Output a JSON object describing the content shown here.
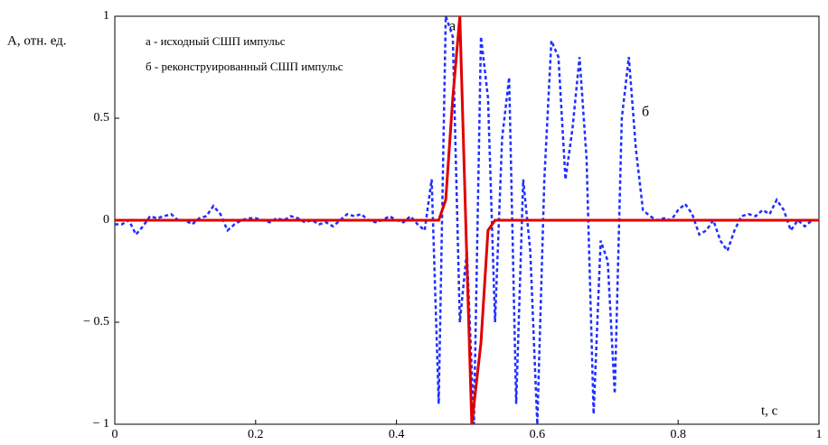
{
  "chart_data": {
    "type": "line",
    "ylabel": "A, отн. ед.",
    "xlabel": "t, c",
    "annotations": [
      "а - исходный СШП импульс",
      "б - реконструированный СШП импульс"
    ],
    "curve_labels": [
      "а",
      "б"
    ],
    "xlim": [
      0,
      1
    ],
    "ylim": [
      -1,
      1
    ],
    "xticks": [
      0,
      0.2,
      0.4,
      0.6,
      0.8,
      1
    ],
    "yticks": [
      {
        "value": -1,
        "label": "− 1"
      },
      {
        "value": -0.5,
        "label": "− 0.5"
      },
      0,
      0.5,
      1
    ],
    "grid": false,
    "series": [
      {
        "color": "#1f2fff",
        "style": "dotted",
        "x": [
          0,
          0.01,
          0.02,
          0.03,
          0.04,
          0.05,
          0.06,
          0.07,
          0.08,
          0.09,
          0.1,
          0.11,
          0.12,
          0.13,
          0.14,
          0.15,
          0.16,
          0.17,
          0.18,
          0.19,
          0.2,
          0.21,
          0.22,
          0.23,
          0.24,
          0.25,
          0.26,
          0.27,
          0.28,
          0.29,
          0.3,
          0.31,
          0.32,
          0.33,
          0.34,
          0.35,
          0.36,
          0.37,
          0.38,
          0.39,
          0.4,
          0.41,
          0.42,
          0.43,
          0.44,
          0.45,
          0.46,
          0.47,
          0.48,
          0.49,
          0.5,
          0.51,
          0.52,
          0.53,
          0.54,
          0.55,
          0.56,
          0.57,
          0.58,
          0.59,
          0.6,
          0.61,
          0.62,
          0.63,
          0.64,
          0.65,
          0.66,
          0.67,
          0.68,
          0.69,
          0.7,
          0.71,
          0.72,
          0.73,
          0.74,
          0.75,
          0.76,
          0.77,
          0.78,
          0.79,
          0.8,
          0.81,
          0.82,
          0.83,
          0.84,
          0.85,
          0.86,
          0.87,
          0.88,
          0.89,
          0.9,
          0.91,
          0.92,
          0.93,
          0.94,
          0.95,
          0.96,
          0.97,
          0.98,
          0.99,
          1
        ],
        "values": [
          -0.02,
          -0.02,
          0,
          -0.07,
          -0.03,
          0.02,
          0.01,
          0.02,
          0.03,
          0,
          0,
          -0.02,
          0.01,
          0.02,
          0.07,
          0.03,
          -0.05,
          -0.02,
          0,
          0.01,
          0.01,
          0,
          -0.01,
          0.01,
          0,
          0.02,
          0.01,
          -0.01,
          0,
          -0.02,
          -0.01,
          -0.03,
          0,
          0.03,
          0.02,
          0.03,
          0,
          -0.01,
          0,
          0.02,
          0,
          -0.01,
          0.02,
          -0.02,
          -0.05,
          0.2,
          -0.9,
          1,
          0.9,
          -0.5,
          -0.15,
          -1,
          0.9,
          0.6,
          -0.5,
          0.4,
          0.7,
          -0.9,
          0.2,
          -0.15,
          -1,
          0.2,
          0.88,
          0.8,
          0.2,
          0.45,
          0.8,
          0.3,
          -0.95,
          -0.1,
          -0.2,
          -0.85,
          0.5,
          0.8,
          0.35,
          0.05,
          0.02,
          0,
          0.01,
          0,
          0.05,
          0.08,
          0.03,
          -0.07,
          -0.05,
          0,
          -0.1,
          -0.15,
          -0.05,
          0.02,
          0.03,
          0.02,
          0.05,
          0.03,
          0.1,
          0.05,
          -0.05,
          0,
          -0.03,
          0,
          0
        ]
      },
      {
        "color": "#e00000",
        "style": "solid",
        "x": [
          0,
          0.46,
          0.47,
          0.48,
          0.49,
          0.5,
          0.507,
          0.52,
          0.53,
          0.54,
          1
        ],
        "values": [
          0,
          0,
          0.1,
          0.6,
          1,
          -0.2,
          -1,
          -0.6,
          -0.05,
          0,
          0
        ]
      }
    ]
  }
}
